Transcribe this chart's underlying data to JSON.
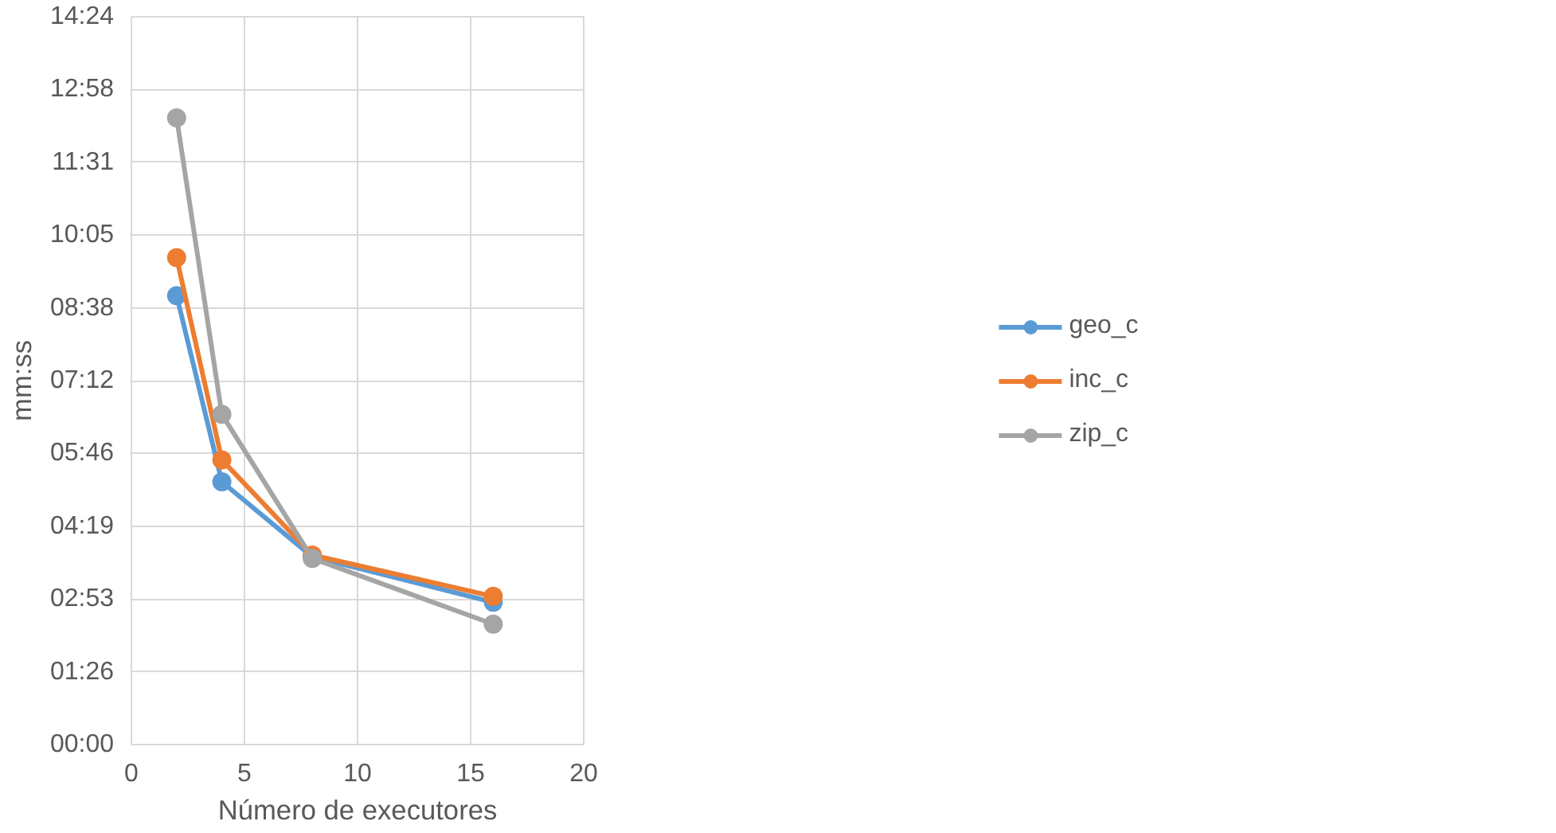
{
  "chart_data": {
    "type": "line",
    "xlabel": "Número de executores",
    "ylabel": "mm:ss",
    "x": [
      2,
      4,
      8,
      16
    ],
    "series": [
      {
        "name": "geo_c",
        "color": "#5b9bd5",
        "values": [
          533,
          312,
          223,
          169
        ]
      },
      {
        "name": "inc_c",
        "color": "#ed7d31",
        "values": [
          578,
          338,
          225,
          176
        ]
      },
      {
        "name": "zip_c",
        "color": "#a5a5a5",
        "values": [
          744,
          392,
          221,
          143
        ]
      }
    ],
    "xlim": [
      0,
      20
    ],
    "xticks": [
      0,
      5,
      10,
      15,
      20
    ],
    "ylim": [
      0,
      864
    ],
    "yticks": [
      {
        "value": 0,
        "label": "00:00"
      },
      {
        "value": 86.4,
        "label": "01:26"
      },
      {
        "value": 172.8,
        "label": "02:53"
      },
      {
        "value": 259.2,
        "label": "04:19"
      },
      {
        "value": 345.6,
        "label": "05:46"
      },
      {
        "value": 432,
        "label": "07:12"
      },
      {
        "value": 518.4,
        "label": "08:38"
      },
      {
        "value": 604.8,
        "label": "10:05"
      },
      {
        "value": 691.2,
        "label": "11:31"
      },
      {
        "value": 777.6,
        "label": "12:58"
      },
      {
        "value": 864,
        "label": "14:24"
      }
    ],
    "grid": true,
    "legend": "right",
    "marker": "circle",
    "line_style": "solid"
  }
}
